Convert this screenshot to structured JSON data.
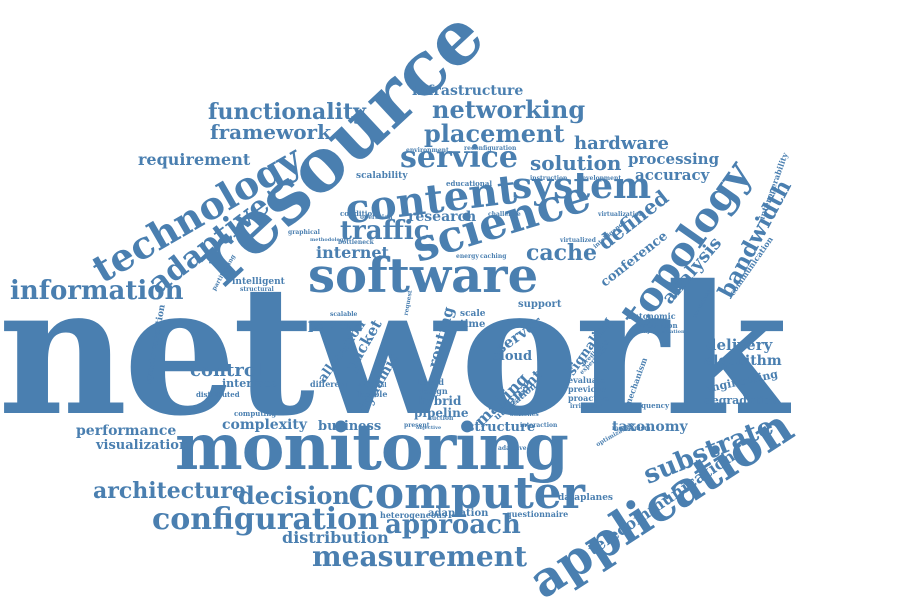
{
  "cloud": {
    "color": "#4a7fb0",
    "words": {
      "network": "network",
      "monitoring": "monitoring",
      "resource": "resource",
      "software": "software",
      "computer": "computer",
      "application": "application",
      "science": "science",
      "topology": "topology",
      "technology": "technology",
      "content": "content",
      "system": "system",
      "service": "service",
      "configuration": "configuration",
      "measurement": "measurement",
      "approach": "approach",
      "information": "information",
      "decision": "decision",
      "architecture": "architecture",
      "adaptive": "adaptive",
      "substrate": "substrate",
      "networking": "networking",
      "placement": "placement",
      "functionality": "functionality",
      "framework": "framework",
      "infrastructure": "infrastructure",
      "requirement": "requirement",
      "hardware": "hardware",
      "processing": "processing",
      "accuracy": "accuracy",
      "solution": "solution",
      "traffic": "traffic",
      "cache": "cache",
      "bandwidth": "bandwidth",
      "analysis": "analysis",
      "defined": "defined",
      "internet": "internet",
      "research": "research",
      "control": "control",
      "interface": "interface",
      "performance": "performance",
      "visualization": "visualization",
      "complexity": "complexity",
      "business": "business",
      "structure": "structure",
      "taxonomy": "taxonomy",
      "distribution": "distribution",
      "telecommunication": "telecommunication",
      "delivery": "delivery",
      "algorithm": "algorithm",
      "engineering": "engineering",
      "degradation": "degradation",
      "paper": "paper",
      "packet": "packet",
      "allocation": "allocation",
      "dynamic": "dynamic",
      "routing": "routing",
      "making": "making",
      "tenant": "tenant",
      "cloud": "cloud",
      "server": "server",
      "signaling": "signaling",
      "pipeline": "pipeline",
      "hybrid": "hybrid",
      "design": "design",
      "based": "based",
      "flexible": "flexible",
      "different": "different",
      "utilization": "utilization",
      "conference": "conference",
      "intelligent": "intelligent",
      "scalability": "scalability",
      "synchronization": "synchronization",
      "adaptation": "adaptation",
      "heterogeneous": "heterogeneous",
      "questionnaire": "questionnaire",
      "dataplanes": "dataplanes",
      "communication": "communication",
      "interoperability": "interoperability",
      "autonomic": "autonomic",
      "institution": "institution",
      "evaluate": "evaluate",
      "previous": "previous",
      "proactive": "proactive",
      "mechanism": "mechanism",
      "frequency": "frequency",
      "support": "support",
      "scale": "scale",
      "time": "time",
      "educational": "educational",
      "environment": "environment",
      "reconfiguration": "reconfiguration",
      "instruction": "instruction",
      "development": "development",
      "condition": "condition",
      "operation": "operation",
      "challenge": "challenge",
      "virtualized": "virtualized",
      "energy": "energy",
      "caching": "caching",
      "graphical": "graphical",
      "bottleneck": "bottleneck",
      "computing": "computing",
      "distributed": "distributed",
      "present": "present",
      "interaction": "interaction",
      "adaptive_small": "adaptive",
      "optimization": "optimization",
      "switches": "switches",
      "mechanism_small": "mechanism",
      "request": "request",
      "artificial": "artificial",
      "intelligence": "intelligence",
      "virtualization": "virtualization",
      "methodology": "methodology",
      "partitioning": "partitioning",
      "structural": "structural",
      "scalable": "scalable",
      "auction": "auction",
      "objective": "objective",
      "predicting": "predicting",
      "experience": "experience",
      "irrigation": "irrigation",
      "provisioning": "provisioning",
      "implementation": "implementation"
    }
  }
}
